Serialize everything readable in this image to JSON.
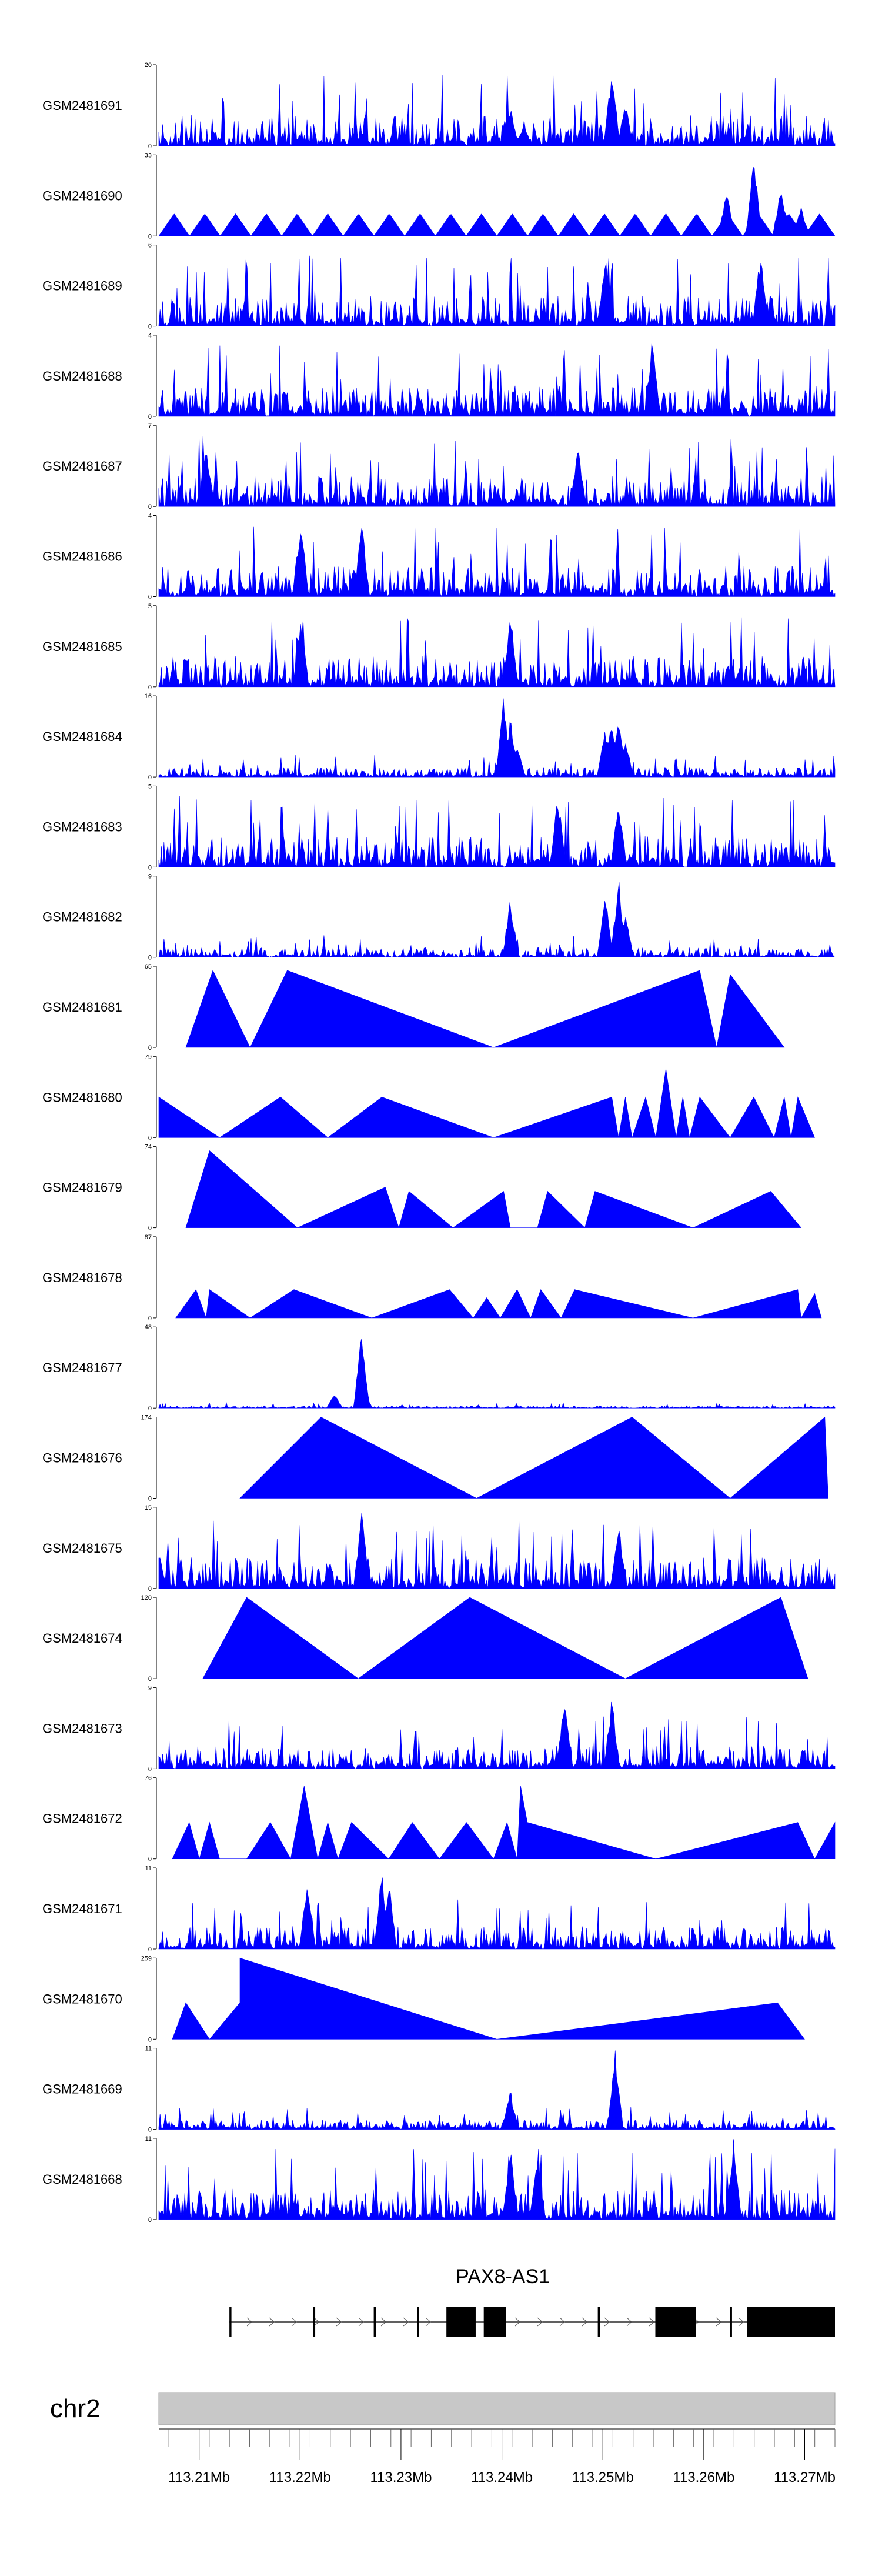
{
  "colors": {
    "signal": "#0000ff",
    "axis": "#000000",
    "ideogram": "#c8c8c8",
    "gene": "#000000"
  },
  "chart_data": {
    "type": "area",
    "x_range": [
      113206000,
      113273000
    ],
    "tracks": [
      {
        "name": "GSM2481691",
        "ymax": 20,
        "ymin_label": "0",
        "ymax_label": "20",
        "style": "dense",
        "peaks": [
          [
            0.52,
            0.5
          ],
          [
            0.54,
            0.3
          ],
          [
            0.67,
            1.0
          ],
          [
            0.69,
            0.55
          ]
        ]
      },
      {
        "name": "GSM2481690",
        "ymax": 33,
        "ymin_label": "0",
        "ymax_label": "33",
        "style": "sparse",
        "peaks": [
          [
            0.84,
            0.6
          ],
          [
            0.88,
            1.0
          ],
          [
            0.92,
            0.65
          ],
          [
            0.95,
            0.4
          ]
        ]
      },
      {
        "name": "GSM2481689",
        "ymax": 6,
        "ymin_label": "0",
        "ymax_label": "6",
        "style": "dense",
        "peaks": [
          [
            0.66,
            0.85
          ],
          [
            0.89,
            0.95
          ]
        ]
      },
      {
        "name": "GSM2481688",
        "ymax": 4,
        "ymin_label": "0",
        "ymax_label": "4",
        "style": "dense",
        "peaks": [
          [
            0.73,
            1.0
          ]
        ]
      },
      {
        "name": "GSM2481687",
        "ymax": 7,
        "ymin_label": "0",
        "ymax_label": "7",
        "style": "dense",
        "peaks": [
          [
            0.07,
            0.8
          ],
          [
            0.62,
            0.8
          ]
        ]
      },
      {
        "name": "GSM2481686",
        "ymax": 4,
        "ymin_label": "0",
        "ymax_label": "4",
        "style": "dense",
        "peaks": [
          [
            0.21,
            1.0
          ],
          [
            0.3,
            0.95
          ]
        ]
      },
      {
        "name": "GSM2481685",
        "ymax": 5,
        "ymin_label": "0",
        "ymax_label": "5",
        "style": "dense",
        "peaks": [
          [
            0.21,
            0.9
          ],
          [
            0.52,
            0.95
          ]
        ]
      },
      {
        "name": "GSM2481684",
        "ymax": 16,
        "ymin_label": "0",
        "ymax_label": "16",
        "style": "lowpeaks",
        "peaks": [
          [
            0.51,
            1.0
          ],
          [
            0.52,
            0.75
          ],
          [
            0.53,
            0.45
          ],
          [
            0.66,
            0.6
          ],
          [
            0.67,
            0.75
          ],
          [
            0.68,
            0.8
          ],
          [
            0.69,
            0.5
          ]
        ]
      },
      {
        "name": "GSM2481683",
        "ymax": 5,
        "ymin_label": "0",
        "ymax_label": "5",
        "style": "dense",
        "peaks": [
          [
            0.59,
            0.95
          ],
          [
            0.68,
            0.9
          ]
        ]
      },
      {
        "name": "GSM2481682",
        "ymax": 9,
        "ymin_label": "0",
        "ymax_label": "9",
        "style": "lowpeaks",
        "peaks": [
          [
            0.52,
            0.75
          ],
          [
            0.66,
            0.8
          ],
          [
            0.68,
            1.0
          ],
          [
            0.69,
            0.6
          ]
        ]
      },
      {
        "name": "GSM2481681",
        "ymax": 65,
        "ymin_label": "0",
        "ymax_label": "65",
        "style": "tri",
        "peaks": [
          [
            0.04,
            0.0
          ],
          [
            0.08,
            0.95
          ],
          [
            0.135,
            0.0
          ],
          [
            0.19,
            0.95
          ],
          [
            0.495,
            0.0
          ],
          [
            0.8,
            0.95
          ],
          [
            0.825,
            0.0
          ],
          [
            0.845,
            0.9
          ],
          [
            0.925,
            0.0
          ]
        ]
      },
      {
        "name": "GSM2481680",
        "ymax": 79,
        "ymin_label": "0",
        "ymax_label": "79",
        "style": "tri",
        "peaks": [
          [
            0.0,
            0.5
          ],
          [
            0.09,
            0.0
          ],
          [
            0.18,
            0.5
          ],
          [
            0.25,
            0.0
          ],
          [
            0.33,
            0.5
          ],
          [
            0.495,
            0.0
          ],
          [
            0.67,
            0.5
          ],
          [
            0.68,
            0.0
          ],
          [
            0.69,
            0.5
          ],
          [
            0.7,
            0.0
          ],
          [
            0.72,
            0.5
          ],
          [
            0.735,
            0.0
          ],
          [
            0.75,
            0.85
          ],
          [
            0.765,
            0.0
          ],
          [
            0.775,
            0.5
          ],
          [
            0.785,
            0.0
          ],
          [
            0.8,
            0.5
          ],
          [
            0.845,
            0.0
          ],
          [
            0.88,
            0.5
          ],
          [
            0.91,
            0.0
          ],
          [
            0.925,
            0.5
          ],
          [
            0.935,
            0.0
          ],
          [
            0.945,
            0.5
          ],
          [
            0.97,
            0.0
          ]
        ]
      },
      {
        "name": "GSM2481679",
        "ymax": 74,
        "ymin_label": "0",
        "ymax_label": "74",
        "style": "tri",
        "peaks": [
          [
            0.04,
            0.0
          ],
          [
            0.075,
            0.95
          ],
          [
            0.205,
            0.0
          ],
          [
            0.335,
            0.5
          ],
          [
            0.355,
            0.0
          ],
          [
            0.37,
            0.45
          ],
          [
            0.435,
            0.0
          ],
          [
            0.51,
            0.45
          ],
          [
            0.52,
            0.0
          ],
          [
            0.56,
            0.0
          ],
          [
            0.575,
            0.45
          ],
          [
            0.63,
            0.0
          ],
          [
            0.645,
            0.45
          ],
          [
            0.79,
            0.0
          ],
          [
            0.905,
            0.45
          ],
          [
            0.95,
            0.0
          ]
        ]
      },
      {
        "name": "GSM2481678",
        "ymax": 87,
        "ymin_label": "0",
        "ymax_label": "87",
        "style": "tri",
        "peaks": [
          [
            0.025,
            0.0
          ],
          [
            0.055,
            0.35
          ],
          [
            0.07,
            0.0
          ],
          [
            0.075,
            0.35
          ],
          [
            0.135,
            0.0
          ],
          [
            0.2,
            0.35
          ],
          [
            0.315,
            0.0
          ],
          [
            0.43,
            0.35
          ],
          [
            0.465,
            0.0
          ],
          [
            0.485,
            0.25
          ],
          [
            0.505,
            0.0
          ],
          [
            0.53,
            0.35
          ],
          [
            0.55,
            0.0
          ],
          [
            0.565,
            0.35
          ],
          [
            0.595,
            0.0
          ],
          [
            0.615,
            0.35
          ],
          [
            0.79,
            0.0
          ],
          [
            0.945,
            0.35
          ],
          [
            0.95,
            0.0
          ],
          [
            0.97,
            0.3
          ],
          [
            0.98,
            0.0
          ]
        ]
      },
      {
        "name": "GSM2481677",
        "ymax": 48,
        "ymin_label": "0",
        "ymax_label": "48",
        "style": "flat",
        "peaks": [
          [
            0.26,
            0.18
          ],
          [
            0.3,
            1.0
          ]
        ]
      },
      {
        "name": "GSM2481676",
        "ymax": 174,
        "ymin_label": "0",
        "ymax_label": "174",
        "style": "tri",
        "peaks": [
          [
            0.12,
            0.0
          ],
          [
            0.24,
            1.0
          ],
          [
            0.47,
            0.0
          ],
          [
            0.7,
            1.0
          ],
          [
            0.845,
            0.0
          ],
          [
            0.985,
            1.0
          ],
          [
            0.99,
            0.0
          ]
        ]
      },
      {
        "name": "GSM2481675",
        "ymax": 15,
        "ymin_label": "0",
        "ymax_label": "15",
        "style": "dense",
        "peaks": [
          [
            0.3,
            1.0
          ],
          [
            0.68,
            0.85
          ]
        ]
      },
      {
        "name": "GSM2481674",
        "ymax": 120,
        "ymin_label": "0",
        "ymax_label": "120",
        "style": "tri",
        "peaks": [
          [
            0.065,
            0.0
          ],
          [
            0.13,
            1.0
          ],
          [
            0.295,
            0.0
          ],
          [
            0.46,
            1.0
          ],
          [
            0.69,
            0.0
          ],
          [
            0.92,
            1.0
          ],
          [
            0.96,
            0.0
          ]
        ]
      },
      {
        "name": "GSM2481673",
        "ymax": 9,
        "ymin_label": "0",
        "ymax_label": "9",
        "style": "mixed",
        "peaks": [
          [
            0.6,
            0.95
          ],
          [
            0.67,
            0.9
          ]
        ]
      },
      {
        "name": "GSM2481672",
        "ymax": 76,
        "ymin_label": "0",
        "ymax_label": "76",
        "style": "tri",
        "peaks": [
          [
            0.02,
            0.0
          ],
          [
            0.045,
            0.45
          ],
          [
            0.06,
            0.0
          ],
          [
            0.075,
            0.45
          ],
          [
            0.09,
            0.0
          ],
          [
            0.13,
            0.0
          ],
          [
            0.165,
            0.45
          ],
          [
            0.195,
            0.0
          ],
          [
            0.215,
            0.9
          ],
          [
            0.235,
            0.0
          ],
          [
            0.25,
            0.45
          ],
          [
            0.265,
            0.0
          ],
          [
            0.285,
            0.45
          ],
          [
            0.34,
            0.0
          ],
          [
            0.375,
            0.45
          ],
          [
            0.415,
            0.0
          ],
          [
            0.455,
            0.45
          ],
          [
            0.495,
            0.0
          ],
          [
            0.515,
            0.45
          ],
          [
            0.53,
            0.0
          ],
          [
            0.535,
            0.9
          ],
          [
            0.545,
            0.45
          ],
          [
            0.735,
            0.0
          ],
          [
            0.945,
            0.45
          ],
          [
            0.97,
            0.0
          ],
          [
            1.0,
            0.45
          ]
        ]
      },
      {
        "name": "GSM2481671",
        "ymax": 11,
        "ymin_label": "0",
        "ymax_label": "11",
        "style": "mixed",
        "peaks": [
          [
            0.22,
            0.95
          ],
          [
            0.33,
            1.0
          ],
          [
            0.34,
            0.9
          ]
        ]
      },
      {
        "name": "GSM2481670",
        "ymax": 259,
        "ymin_label": "0",
        "ymax_label": "259",
        "style": "tri",
        "peaks": [
          [
            0.02,
            0.0
          ],
          [
            0.04,
            0.45
          ],
          [
            0.075,
            0.0
          ],
          [
            0.12,
            0.45
          ],
          [
            0.12,
            1.0
          ],
          [
            0.5,
            0.0
          ],
          [
            0.915,
            0.45
          ],
          [
            0.955,
            0.0
          ]
        ]
      },
      {
        "name": "GSM2481669",
        "ymax": 11,
        "ymin_label": "0",
        "ymax_label": "11",
        "style": "lowpeaks",
        "peaks": [
          [
            0.52,
            0.5
          ],
          [
            0.675,
            1.0
          ]
        ]
      },
      {
        "name": "GSM2481668",
        "ymax": 11,
        "ymin_label": "0",
        "ymax_label": "11",
        "style": "dense",
        "peaks": [
          [
            0.52,
            0.9
          ],
          [
            0.56,
            0.8
          ],
          [
            0.85,
            1.0
          ]
        ]
      }
    ],
    "gene": {
      "name": "PAX8-AS1",
      "start": 113213000,
      "end": 113273000,
      "exons": [
        [
          113213000,
          113213200
        ],
        [
          113221300,
          113221500
        ],
        [
          113227300,
          113227500
        ],
        [
          113231600,
          113231800
        ],
        [
          113234500,
          113237400
        ],
        [
          113238200,
          113240400
        ],
        [
          113249500,
          113249700
        ],
        [
          113255200,
          113259200
        ],
        [
          113262600,
          113262800
        ],
        [
          113264300,
          113273000
        ]
      ]
    },
    "chromosome": "chr2",
    "x_ticks": [
      "113.21Mb",
      "113.22Mb",
      "113.23Mb",
      "113.24Mb",
      "113.25Mb",
      "113.26Mb",
      "113.27Mb"
    ],
    "x_tick_values": [
      113210000,
      113220000,
      113230000,
      113240000,
      113250000,
      113260000,
      113270000
    ]
  }
}
